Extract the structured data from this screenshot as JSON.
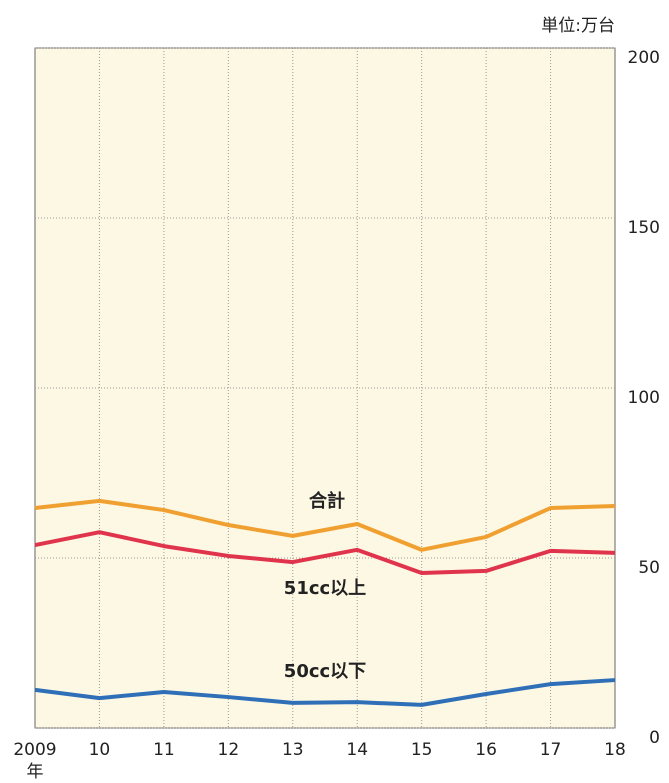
{
  "chart_data": {
    "type": "line",
    "unit": "単位:万台",
    "x_label": "年",
    "categories": [
      "2009",
      "10",
      "11",
      "12",
      "13",
      "14",
      "15",
      "16",
      "17",
      "18"
    ],
    "series": [
      {
        "name": "合計",
        "color": "#f0a030",
        "values": [
          64.7,
          66.8,
          64.1,
          59.7,
          56.5,
          60.0,
          52.4,
          56.2,
          64.7,
          65.3
        ]
      },
      {
        "name": "51cc以上",
        "color": "#e0344c",
        "values": [
          53.8,
          57.6,
          53.5,
          50.6,
          48.8,
          52.4,
          45.6,
          46.2,
          52.1,
          51.5
        ]
      },
      {
        "name": "50cc以下",
        "color": "#2f6fb8",
        "values": [
          11.2,
          8.8,
          10.6,
          9.1,
          7.4,
          7.6,
          6.8,
          10.0,
          12.9,
          14.1
        ]
      }
    ],
    "ylim": [
      0,
      200
    ],
    "yticks": [
      0,
      50,
      100,
      150,
      200
    ],
    "grid": true
  }
}
